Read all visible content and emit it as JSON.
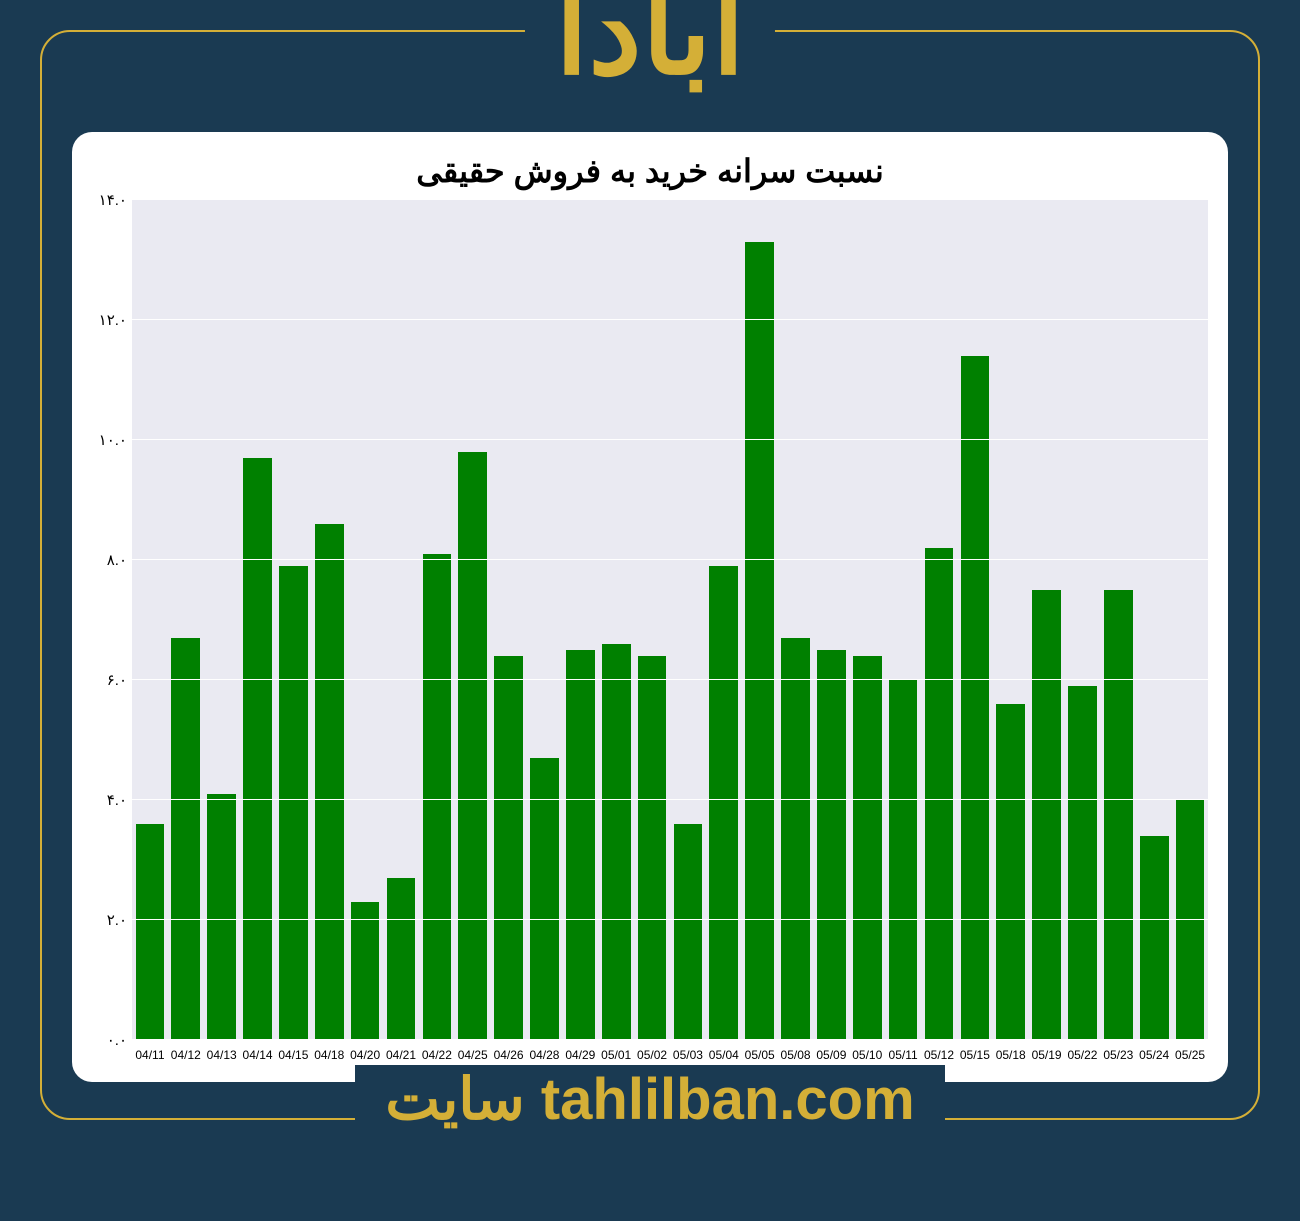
{
  "header": {
    "title": "آبادا"
  },
  "footer": {
    "prefix": "سایت",
    "url": "tahlilban.com"
  },
  "chart": {
    "type": "bar",
    "title": "نسبت سرانه خرید به فروش حقیقی",
    "title_fontsize": 32,
    "background_color": "#ffffff",
    "plot_background_color": "#eaeaf2",
    "grid_color": "#ffffff",
    "bar_color": "#008000",
    "ylim": [
      0,
      14
    ],
    "ytick_step": 2,
    "ytick_labels": [
      "۰.۰",
      "۲.۰",
      "۴.۰",
      "۶.۰",
      "۸.۰",
      "۱۰.۰",
      "۱۲.۰",
      "۱۴.۰"
    ],
    "bar_width": 0.8,
    "x_labels": [
      "04/11",
      "04/12",
      "04/13",
      "04/14",
      "04/15",
      "04/18",
      "04/20",
      "04/21",
      "04/22",
      "04/25",
      "04/26",
      "04/28",
      "04/29",
      "05/01",
      "05/02",
      "05/03",
      "05/04",
      "05/05",
      "05/08",
      "05/09",
      "05/10",
      "05/11",
      "05/12",
      "05/15",
      "05/18",
      "05/19",
      "05/22",
      "05/23",
      "05/24",
      "05/25"
    ],
    "values": [
      3.6,
      6.7,
      4.1,
      9.7,
      7.9,
      8.6,
      2.3,
      2.7,
      8.1,
      9.8,
      6.4,
      4.7,
      6.5,
      6.6,
      6.4,
      3.6,
      7.9,
      13.3,
      6.7,
      6.5,
      6.4,
      6.0,
      8.2,
      11.4,
      5.6,
      7.5,
      5.9,
      7.5,
      3.4,
      4.0
    ],
    "tick_fontsize": 15,
    "x_tick_fontsize": 12
  },
  "theme": {
    "page_background": "#1a3a52",
    "accent": "#d4af37",
    "frame_border": "#d4af37"
  }
}
